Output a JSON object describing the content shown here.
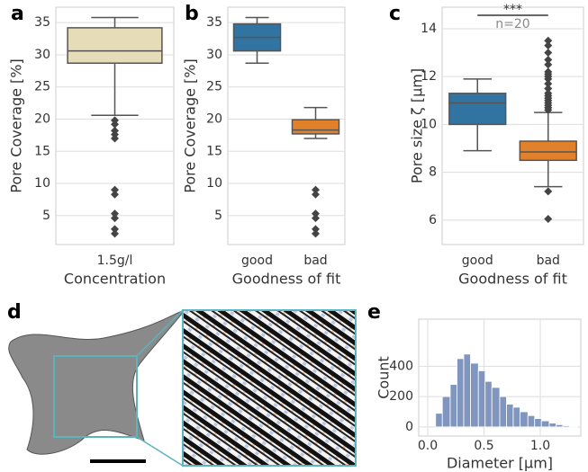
{
  "chart_data": [
    {
      "type": "box",
      "panel_label": "a",
      "ylabel": "Pore Coverage [%]",
      "xlabel": "Concentration",
      "categories": [
        "1.5g/l"
      ],
      "boxes": [
        {
          "color": "#e6dcb8",
          "whislo": 20.6,
          "q1": 28.7,
          "med": 30.6,
          "q3": 34.2,
          "whishi": 35.8,
          "fliers": [
            19.8,
            19.2,
            18.2,
            17.6,
            17.0,
            9.0,
            8.3,
            5.3,
            4.6,
            2.9,
            2.2
          ]
        }
      ],
      "ylim": [
        0.5,
        37.4
      ],
      "yticks": [
        5,
        10,
        15,
        20,
        25,
        30,
        35
      ],
      "grid": true
    },
    {
      "type": "box",
      "panel_label": "b",
      "ylabel": "Pore Coverage [%]",
      "xlabel": "Goodness of fit",
      "categories": [
        "good",
        "bad"
      ],
      "boxes": [
        {
          "color": "#3274a1",
          "whislo": 28.7,
          "q1": 30.6,
          "med": 32.7,
          "q3": 34.8,
          "whishi": 35.8,
          "fliers": []
        },
        {
          "color": "#e1812c",
          "whislo": 17.0,
          "q1": 17.7,
          "med": 18.3,
          "q3": 19.9,
          "whishi": 21.8,
          "fliers": [
            9.0,
            8.3,
            5.3,
            4.6,
            2.9,
            2.2
          ]
        }
      ],
      "ylim": [
        0.5,
        37.4
      ],
      "yticks": [
        5,
        10,
        15,
        20,
        25,
        30,
        35
      ],
      "grid": true
    },
    {
      "type": "box",
      "panel_label": "c",
      "ylabel": "Pore size ζ [μm]",
      "xlabel": "Goodness of fit",
      "categories": [
        "good",
        "bad"
      ],
      "annotations": [
        "***",
        "n=20"
      ],
      "boxes": [
        {
          "color": "#3274a1",
          "whislo": 8.9,
          "q1": 10.0,
          "med": 10.9,
          "q3": 11.3,
          "whishi": 11.9,
          "fliers": []
        },
        {
          "color": "#e1812c",
          "whislo": 7.4,
          "q1": 8.5,
          "med": 8.85,
          "q3": 9.3,
          "whishi": 10.5,
          "fliers": [
            10.6,
            10.7,
            10.8,
            10.9,
            11.0,
            11.1,
            11.2,
            11.3,
            11.5,
            11.7,
            11.9,
            12.0,
            12.1,
            12.2,
            12.5,
            12.7,
            13.0,
            13.3,
            13.5,
            7.2,
            6.05
          ]
        }
      ],
      "ylim": [
        4.98,
        14.9
      ],
      "yticks": [
        6,
        8,
        10,
        12,
        14
      ],
      "grid": true
    },
    {
      "type": "histogram",
      "panel_label": "e",
      "ylabel": "Count",
      "xlabel": "Diameter [μm]",
      "color": "#8196be",
      "bins": [
        0.07,
        0.13,
        0.2,
        0.26,
        0.32,
        0.38,
        0.45,
        0.51,
        0.57,
        0.64,
        0.7,
        0.76,
        0.82,
        0.89,
        0.95,
        1.01,
        1.08,
        1.14,
        1.2,
        1.26,
        1.33
      ],
      "values": [
        90,
        200,
        280,
        450,
        480,
        420,
        370,
        300,
        260,
        200,
        150,
        130,
        100,
        75,
        55,
        40,
        25,
        15,
        8,
        4
      ],
      "xlim": [
        -0.08,
        1.36
      ],
      "xticks": [
        {
          "value": 0,
          "label": "0.0"
        },
        0.5,
        {
          "value": 1,
          "label": "1.0"
        }
      ],
      "ylim": [
        -60,
        710
      ],
      "yticks": [
        0,
        200,
        400
      ],
      "grid": true
    }
  ],
  "image_panel": {
    "label": "d"
  }
}
